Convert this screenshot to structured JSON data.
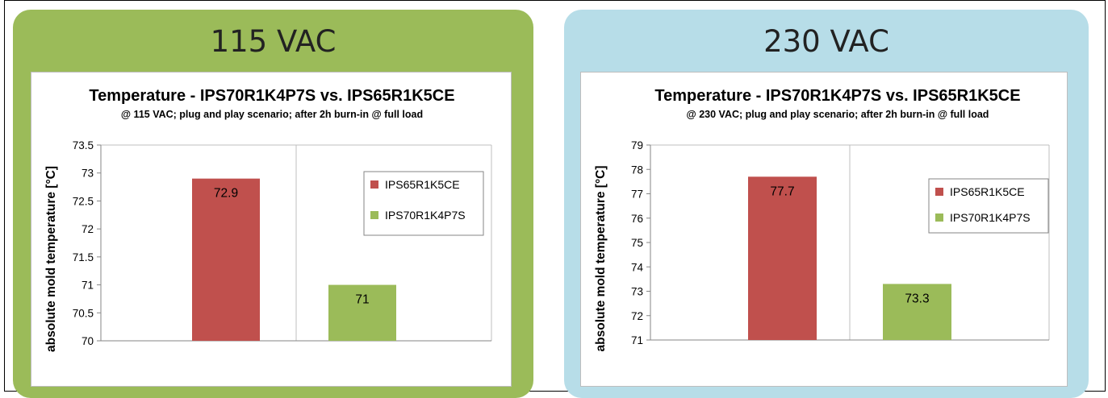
{
  "colors": {
    "left_panel": "#9bbb59",
    "right_panel": "#b7dde8",
    "series_a": "#c0504d",
    "series_b": "#9bbb59",
    "grid": "#bfbfbf"
  },
  "panels": [
    {
      "title": "115 VAC"
    },
    {
      "title": "230 VAC"
    }
  ],
  "chart_data": [
    {
      "type": "bar",
      "title": "Temperature - IPS70R1K4P7S vs. IPS65R1K5CE",
      "subtitle": "@ 115 VAC; plug and play scenario; after 2h burn-in @ full load",
      "xlabel": "",
      "ylabel": "absolute mold temperature [°C]",
      "ylim": [
        70,
        73.5
      ],
      "yticks": [
        "70",
        "70.5",
        "71",
        "71.5",
        "72",
        "72.5",
        "73",
        "73.5"
      ],
      "grid": true,
      "legend_position": "right",
      "series": [
        {
          "name": "IPS65R1K5CE",
          "values": [
            72.9
          ],
          "labels": [
            "72.9"
          ],
          "color": "#c0504d"
        },
        {
          "name": "IPS70R1K4P7S",
          "values": [
            71
          ],
          "labels": [
            "71"
          ],
          "color": "#9bbb59"
        }
      ]
    },
    {
      "type": "bar",
      "title": "Temperature - IPS70R1K4P7S vs. IPS65R1K5CE",
      "subtitle": "@ 230 VAC; plug and play scenario; after 2h burn-in @ full load",
      "xlabel": "",
      "ylabel": "absolute mold temperature [°C]",
      "ylim": [
        71,
        79
      ],
      "yticks": [
        "71",
        "72",
        "73",
        "74",
        "75",
        "76",
        "77",
        "78",
        "79"
      ],
      "grid": true,
      "legend_position": "right",
      "series": [
        {
          "name": "IPS65R1K5CE",
          "values": [
            77.7
          ],
          "labels": [
            "77.7"
          ],
          "color": "#c0504d"
        },
        {
          "name": "IPS70R1K4P7S",
          "values": [
            73.3
          ],
          "labels": [
            "73.3"
          ],
          "color": "#9bbb59"
        }
      ]
    }
  ]
}
